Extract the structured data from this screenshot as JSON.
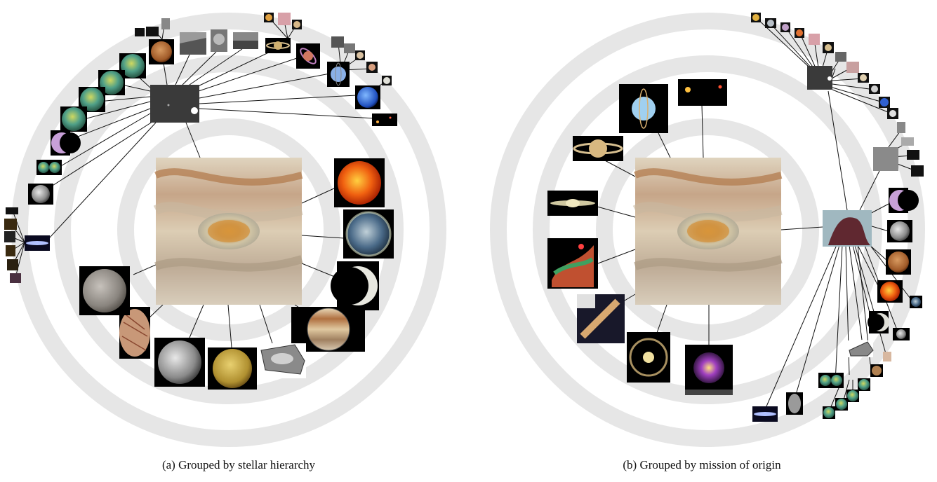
{
  "figure": {
    "captions": {
      "a": "(a) Grouped by stellar hierarchy",
      "b": "(b) Grouped by mission of origin"
    }
  },
  "colors": {
    "ring": "#e6e6e6",
    "edge": "#111111",
    "background": "#ffffff"
  },
  "panels": {
    "a": {
      "center": "jupiter-great-red-spot-icon",
      "inner_ring": [
        "sun-icon",
        "earth-icon",
        "crescent-moon-icon",
        "jupiter-icon",
        "great-red-spot-terrain-icon",
        "io-moon-icon",
        "ganymede-moon-icon",
        "europa-moon-icon",
        "callisto-moon-icon"
      ],
      "hub": "star-field-hub-icon",
      "outer_nodes": [
        "mars-icon",
        "lunar-surface-icon",
        "crater-icon",
        "rock-surface-icon",
        "saturn-icon",
        "saturn-tilted-icon",
        "uranus-icon",
        "neptune-icon",
        "starfield-icon",
        "venus-map-icon",
        "purple-crescent-icon",
        "venus-globes-icon",
        "grey-moon-icon",
        "galaxy-hub-icon"
      ]
    },
    "b": {
      "center": "jupiter-great-red-spot-icon",
      "inner_ring": [
        "saturn-icon",
        "uranus-icon",
        "starfield-icon",
        "sombrero-galaxy-icon",
        "nebula-icon",
        "galaxy-cluster-icon",
        "spiral-galaxy-icon",
        "ring-galaxy-icon"
      ],
      "hub": "horsehead-nebula-hub-icon",
      "outer_nodes": [
        "purple-crescent-icon",
        "grey-moon-icon",
        "mars-icon",
        "sun-icon",
        "crescent-moon-icon",
        "lunar-surface-icon",
        "venus-globes-icon",
        "asteroid-icon",
        "galaxy-icon"
      ]
    }
  }
}
